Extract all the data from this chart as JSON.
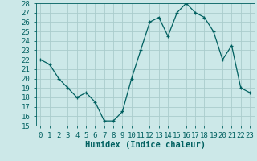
{
  "x": [
    0,
    1,
    2,
    3,
    4,
    5,
    6,
    7,
    8,
    9,
    10,
    11,
    12,
    13,
    14,
    15,
    16,
    17,
    18,
    19,
    20,
    21,
    22,
    23
  ],
  "y": [
    22,
    21.5,
    20,
    19,
    18,
    18.5,
    17.5,
    15.5,
    15.5,
    16.5,
    20,
    23,
    26,
    26.5,
    24.5,
    27,
    28,
    27,
    26.5,
    25,
    22,
    23.5,
    19,
    18.5
  ],
  "line_color": "#006060",
  "marker_color": "#006060",
  "bg_color": "#cce8e8",
  "grid_color": "#aacccc",
  "xlabel": "Humidex (Indice chaleur)",
  "ylim": [
    15,
    28
  ],
  "xlim": [
    -0.5,
    23.5
  ],
  "yticks": [
    15,
    16,
    17,
    18,
    19,
    20,
    21,
    22,
    23,
    24,
    25,
    26,
    27,
    28
  ],
  "xticks": [
    0,
    1,
    2,
    3,
    4,
    5,
    6,
    7,
    8,
    9,
    10,
    11,
    12,
    13,
    14,
    15,
    16,
    17,
    18,
    19,
    20,
    21,
    22,
    23
  ],
  "tick_color": "#006060",
  "label_color": "#006060",
  "tick_fontsize": 6.5,
  "xlabel_fontsize": 7.5
}
